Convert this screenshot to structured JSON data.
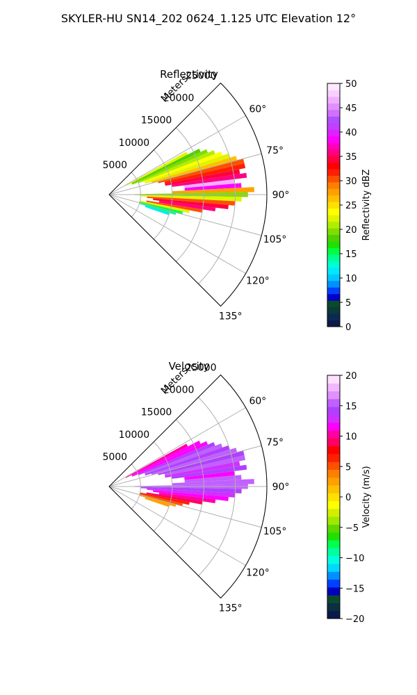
{
  "figure": {
    "suptitle": "SKYLER-HU  SN14_202  0624_1.125 UTC Elevation 12°"
  },
  "chart_data": [
    {
      "type": "heatmap",
      "projection": "polar-sector",
      "title": "Reflectivity",
      "range_axis_label": "Meters",
      "range_ticks": [
        5000,
        10000,
        15000,
        20000,
        25000
      ],
      "range_max": 25000,
      "azimuth_ticks": [
        "60°",
        "75°",
        "90°",
        "105°",
        "120°",
        "135°"
      ],
      "azimuth_tick_values": [
        60,
        75,
        90,
        105,
        120,
        135
      ],
      "azimuth_range": [
        45,
        135
      ],
      "grid": true,
      "colorbar": {
        "label": "Reflectivity dBZ",
        "min": 0,
        "max": 50,
        "ticks": [
          0,
          5,
          10,
          15,
          20,
          25,
          30,
          35,
          40,
          45,
          50
        ],
        "tick_labels": [
          "0",
          "5",
          "10",
          "15",
          "20",
          "25",
          "30",
          "35",
          "40",
          "45",
          "50"
        ],
        "colors": [
          "#0b1a4a",
          "#0b2a52",
          "#0b3a3a",
          "#0b4a2a",
          "#0000c8",
          "#0040ff",
          "#0090ff",
          "#00c8ff",
          "#00e8ff",
          "#00ffd0",
          "#00ff90",
          "#00ff40",
          "#20e000",
          "#50d000",
          "#80dd00",
          "#b0ee00",
          "#e0f400",
          "#ffff00",
          "#ffe000",
          "#ffc000",
          "#ffa000",
          "#ff8000",
          "#ff5000",
          "#ff2000",
          "#ff0000",
          "#ff0040",
          "#ff0080",
          "#ff00c0",
          "#ff00ff",
          "#e020ff",
          "#c040ff",
          "#b050ff",
          "#d070ff",
          "#e090ff",
          "#f0b0ff",
          "#f8d0ff",
          "#ffe8ff"
        ]
      },
      "cells": [
        {
          "az": 62,
          "range": [
            3000,
            14000
          ],
          "value": 22
        },
        {
          "az": 64,
          "range": [
            4000,
            16000
          ],
          "value": 18
        },
        {
          "az": 66,
          "range": [
            4000,
            17000
          ],
          "value": 20
        },
        {
          "az": 68,
          "range": [
            5000,
            18000
          ],
          "value": 21
        },
        {
          "az": 70,
          "range": [
            6000,
            19000
          ],
          "value": 24
        },
        {
          "az": 72,
          "range": [
            6000,
            20000
          ],
          "value": 22
        },
        {
          "az": 74,
          "range": [
            7000,
            21000
          ],
          "value": 26
        },
        {
          "az": 76,
          "range": [
            8000,
            22000
          ],
          "value": 30
        },
        {
          "az": 78,
          "range": [
            9000,
            22000
          ],
          "value": 32
        },
        {
          "az": 80,
          "range": [
            9000,
            21000
          ],
          "value": 34
        },
        {
          "az": 82,
          "range": [
            10000,
            22000
          ],
          "value": 36
        },
        {
          "az": 84,
          "range": [
            12000,
            20000
          ],
          "value": 46
        },
        {
          "az": 86,
          "range": [
            12000,
            21000
          ],
          "value": 38
        },
        {
          "az": 88,
          "range": [
            10000,
            23000
          ],
          "value": 28
        },
        {
          "az": 90,
          "range": [
            4000,
            22000
          ],
          "value": 20
        },
        {
          "az": 92,
          "range": [
            5000,
            21000
          ],
          "value": 22
        },
        {
          "az": 94,
          "range": [
            6000,
            20000
          ],
          "value": 30
        },
        {
          "az": 96,
          "range": [
            7000,
            19000
          ],
          "value": 34
        },
        {
          "az": 98,
          "range": [
            8000,
            17000
          ],
          "value": 36
        },
        {
          "az": 100,
          "range": [
            6000,
            15000
          ],
          "value": 30
        },
        {
          "az": 102,
          "range": [
            5000,
            13000
          ],
          "value": 22
        },
        {
          "az": 104,
          "range": [
            5000,
            12000
          ],
          "value": 16
        },
        {
          "az": 106,
          "range": [
            5000,
            11000
          ],
          "value": 14
        },
        {
          "az": 108,
          "range": [
            6000,
            10000
          ],
          "value": 12
        }
      ]
    },
    {
      "type": "heatmap",
      "projection": "polar-sector",
      "title": "Velocity",
      "range_axis_label": "Meters",
      "range_ticks": [
        5000,
        10000,
        15000,
        20000,
        25000
      ],
      "range_max": 25000,
      "azimuth_ticks": [
        "60°",
        "75°",
        "90°",
        "105°",
        "120°",
        "135°"
      ],
      "azimuth_tick_values": [
        60,
        75,
        90,
        105,
        120,
        135
      ],
      "azimuth_range": [
        45,
        135
      ],
      "grid": true,
      "colorbar": {
        "label": "Velocity (m/s)",
        "min": -20,
        "max": 20,
        "ticks": [
          -20,
          -15,
          -10,
          -5,
          0,
          5,
          10,
          15,
          20
        ],
        "tick_labels": [
          "−20",
          "−15",
          "−10",
          "−5",
          "0",
          "5",
          "10",
          "15",
          "20"
        ],
        "colors": [
          "#0b1a4a",
          "#0b3040",
          "#0b4a30",
          "#0000c0",
          "#0040ff",
          "#0090ff",
          "#00d8ff",
          "#00ffe0",
          "#00ffa0",
          "#00ff50",
          "#20e000",
          "#60d800",
          "#a0e800",
          "#d0f000",
          "#ffff00",
          "#ffe000",
          "#ffc000",
          "#ffa000",
          "#ff8000",
          "#ff5000",
          "#ff2000",
          "#ff0000",
          "#ff0060",
          "#ff00a0",
          "#ff00ff",
          "#d030ff",
          "#b040ff",
          "#c060ff",
          "#e090ff",
          "#f0b8ff",
          "#ffe0ff"
        ]
      },
      "cells": [
        {
          "az": 62,
          "range": [
            3000,
            14000
          ],
          "value": 10
        },
        {
          "az": 64,
          "range": [
            4000,
            16000
          ],
          "value": 12
        },
        {
          "az": 66,
          "range": [
            4000,
            17000
          ],
          "value": 12
        },
        {
          "az": 68,
          "range": [
            5000,
            18000
          ],
          "value": 14
        },
        {
          "az": 70,
          "range": [
            6000,
            19000
          ],
          "value": 15
        },
        {
          "az": 72,
          "range": [
            6000,
            20000
          ],
          "value": 14
        },
        {
          "az": 74,
          "range": [
            7000,
            21000
          ],
          "value": 15
        },
        {
          "az": 76,
          "range": [
            8000,
            22000
          ],
          "value": 14
        },
        {
          "az": 78,
          "range": [
            9000,
            22000
          ],
          "value": 15
        },
        {
          "az": 80,
          "range": [
            9000,
            21000
          ],
          "value": 13
        },
        {
          "az": 82,
          "range": [
            10000,
            22000
          ],
          "value": 14
        },
        {
          "az": 84,
          "range": [
            12000,
            20000
          ],
          "value": 12
        },
        {
          "az": 86,
          "range": [
            12000,
            21000
          ],
          "value": 15
        },
        {
          "az": 88,
          "range": [
            10000,
            23000
          ],
          "value": 16
        },
        {
          "az": 90,
          "range": [
            4000,
            22000
          ],
          "value": 15
        },
        {
          "az": 92,
          "range": [
            5000,
            21000
          ],
          "value": 14
        },
        {
          "az": 94,
          "range": [
            6000,
            20000
          ],
          "value": 13
        },
        {
          "az": 96,
          "range": [
            7000,
            19000
          ],
          "value": 12
        },
        {
          "az": 98,
          "range": [
            8000,
            17000
          ],
          "value": 10
        },
        {
          "az": 100,
          "range": [
            6000,
            15000
          ],
          "value": 9
        },
        {
          "az": 102,
          "range": [
            5000,
            13000
          ],
          "value": 7
        },
        {
          "az": 104,
          "range": [
            5000,
            12000
          ],
          "value": 5
        },
        {
          "az": 106,
          "range": [
            5000,
            11000
          ],
          "value": 3
        },
        {
          "az": 108,
          "range": [
            6000,
            10000
          ],
          "value": 2
        }
      ]
    }
  ]
}
